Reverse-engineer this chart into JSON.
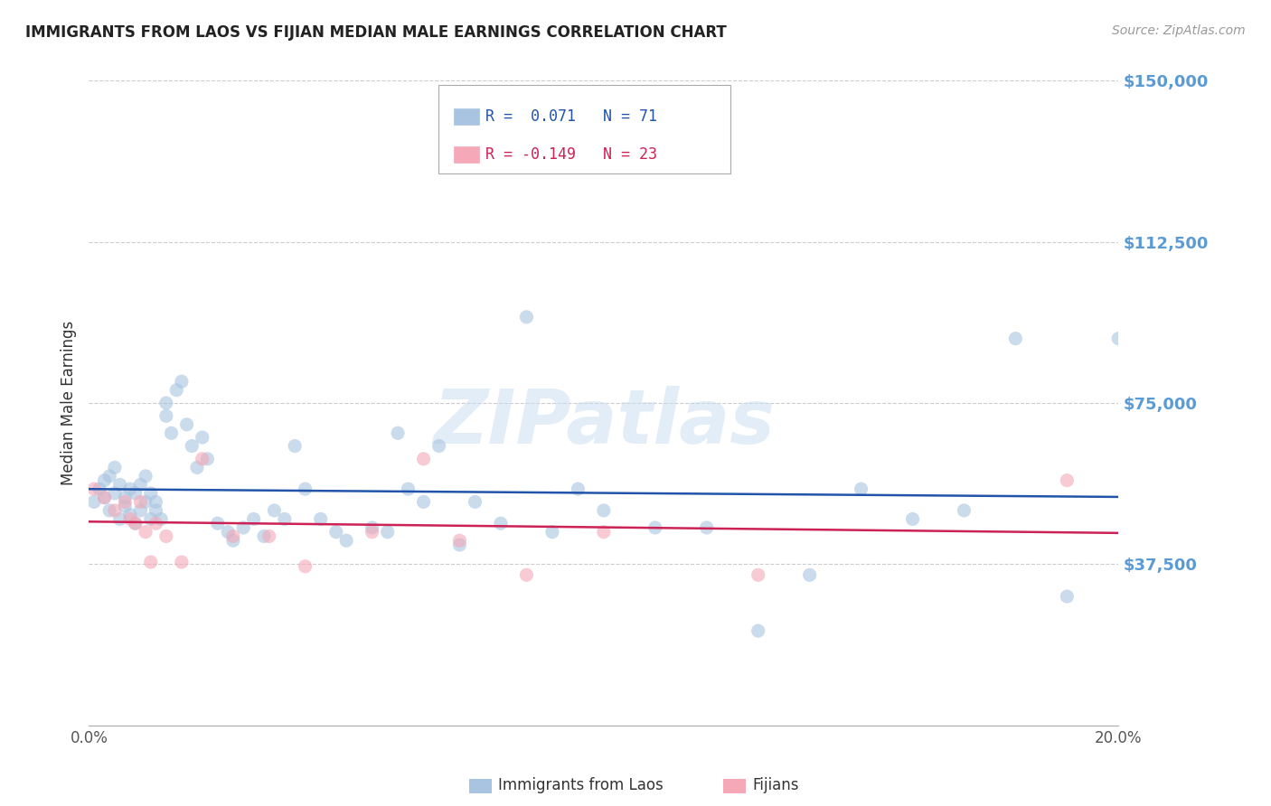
{
  "title": "IMMIGRANTS FROM LAOS VS FIJIAN MEDIAN MALE EARNINGS CORRELATION CHART",
  "source": "Source: ZipAtlas.com",
  "ylabel": "Median Male Earnings",
  "ytick_vals": [
    0,
    37500,
    75000,
    112500,
    150000
  ],
  "ytick_labels": [
    "",
    "$37,500",
    "$75,000",
    "$112,500",
    "$150,000"
  ],
  "ytick_color": "#5b9bd5",
  "xlim": [
    0.0,
    0.2
  ],
  "ylim": [
    0,
    150000
  ],
  "watermark_text": "ZIPatlas",
  "legend1_label": "Immigrants from Laos",
  "legend2_label": "Fijians",
  "r1": 0.071,
  "n1": 71,
  "r2": -0.149,
  "n2": 23,
  "blue_color": "#a8c4e0",
  "pink_color": "#f4a8b8",
  "line_blue": "#2255aa",
  "line_pink": "#cc2255",
  "blue_x": [
    0.001,
    0.002,
    0.003,
    0.003,
    0.004,
    0.004,
    0.005,
    0.005,
    0.006,
    0.006,
    0.007,
    0.007,
    0.008,
    0.008,
    0.009,
    0.009,
    0.01,
    0.01,
    0.011,
    0.011,
    0.012,
    0.012,
    0.013,
    0.013,
    0.014,
    0.015,
    0.015,
    0.016,
    0.017,
    0.018,
    0.019,
    0.02,
    0.021,
    0.022,
    0.023,
    0.025,
    0.027,
    0.028,
    0.03,
    0.032,
    0.034,
    0.036,
    0.038,
    0.04,
    0.042,
    0.045,
    0.048,
    0.05,
    0.055,
    0.058,
    0.06,
    0.062,
    0.065,
    0.068,
    0.072,
    0.075,
    0.08,
    0.085,
    0.09,
    0.095,
    0.1,
    0.11,
    0.12,
    0.13,
    0.14,
    0.15,
    0.16,
    0.17,
    0.18,
    0.19,
    0.2
  ],
  "blue_y": [
    52000,
    55000,
    53000,
    57000,
    50000,
    58000,
    54000,
    60000,
    48000,
    56000,
    51000,
    53000,
    49000,
    55000,
    47000,
    54000,
    50000,
    56000,
    52000,
    58000,
    48000,
    54000,
    50000,
    52000,
    48000,
    75000,
    72000,
    68000,
    78000,
    80000,
    70000,
    65000,
    60000,
    67000,
    62000,
    47000,
    45000,
    43000,
    46000,
    48000,
    44000,
    50000,
    48000,
    65000,
    55000,
    48000,
    45000,
    43000,
    46000,
    45000,
    68000,
    55000,
    52000,
    65000,
    42000,
    52000,
    47000,
    95000,
    45000,
    55000,
    50000,
    46000,
    46000,
    22000,
    35000,
    55000,
    48000,
    50000,
    90000,
    30000,
    90000
  ],
  "pink_x": [
    0.001,
    0.003,
    0.005,
    0.007,
    0.008,
    0.009,
    0.01,
    0.011,
    0.012,
    0.013,
    0.015,
    0.018,
    0.022,
    0.028,
    0.035,
    0.042,
    0.055,
    0.065,
    0.072,
    0.085,
    0.1,
    0.13,
    0.19
  ],
  "pink_y": [
    55000,
    53000,
    50000,
    52000,
    48000,
    47000,
    52000,
    45000,
    38000,
    47000,
    44000,
    38000,
    62000,
    44000,
    44000,
    37000,
    45000,
    62000,
    43000,
    35000,
    45000,
    35000,
    57000
  ]
}
